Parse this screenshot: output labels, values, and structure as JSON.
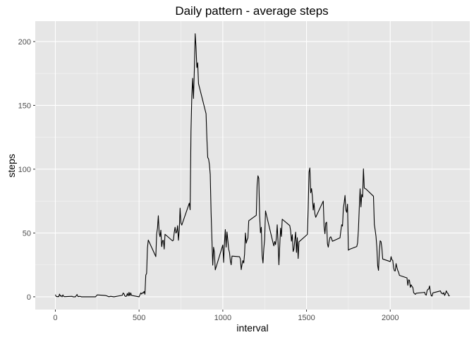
{
  "chart_data": {
    "type": "line",
    "title": "Daily pattern - average steps",
    "xlabel": "interval",
    "ylabel": "steps",
    "xlim": [
      -120,
      2475
    ],
    "ylim": [
      -10,
      216
    ],
    "x_ticks": [
      0,
      500,
      1000,
      1500,
      2000
    ],
    "y_ticks": [
      0,
      50,
      100,
      150,
      200
    ],
    "grid": true,
    "background": "#e6e6e6",
    "grid_major_color": "#ffffff",
    "line_color": "#000000",
    "series": [
      {
        "x": [
          0,
          5,
          10,
          15,
          20,
          25,
          30,
          35,
          40,
          45,
          50,
          55,
          100,
          105,
          110,
          115,
          120,
          125,
          130,
          135,
          140,
          145,
          150,
          155,
          200,
          210,
          220,
          230,
          240,
          250,
          300,
          310,
          320,
          330,
          340,
          350,
          400,
          405,
          410,
          415,
          420,
          425,
          430,
          435,
          440,
          445,
          450,
          455,
          500,
          505,
          510,
          515,
          520,
          525,
          530,
          535,
          540,
          545,
          550,
          555,
          600,
          605,
          610,
          615,
          620,
          625,
          630,
          635,
          640,
          645,
          650,
          655,
          700,
          705,
          710,
          715,
          720,
          725,
          730,
          735,
          740,
          745,
          750,
          755,
          800,
          805,
          810,
          815,
          820,
          825,
          830,
          835,
          840,
          845,
          850,
          855,
          900,
          905,
          910,
          915,
          920,
          925,
          930,
          935,
          940,
          945,
          950,
          955,
          1000,
          1005,
          1010,
          1015,
          1020,
          1025,
          1030,
          1035,
          1040,
          1045,
          1050,
          1055,
          1100,
          1105,
          1110,
          1115,
          1120,
          1125,
          1130,
          1135,
          1140,
          1145,
          1150,
          1155,
          1200,
          1205,
          1210,
          1215,
          1220,
          1225,
          1230,
          1235,
          1240,
          1245,
          1250,
          1255,
          1300,
          1305,
          1310,
          1315,
          1320,
          1325,
          1330,
          1335,
          1340,
          1345,
          1350,
          1355,
          1400,
          1405,
          1410,
          1415,
          1420,
          1425,
          1430,
          1435,
          1440,
          1445,
          1450,
          1455,
          1500,
          1505,
          1510,
          1515,
          1520,
          1525,
          1530,
          1535,
          1540,
          1545,
          1550,
          1555,
          1600,
          1605,
          1610,
          1615,
          1620,
          1625,
          1630,
          1635,
          1640,
          1645,
          1650,
          1655,
          1700,
          1705,
          1710,
          1715,
          1720,
          1725,
          1730,
          1735,
          1740,
          1745,
          1750,
          1755,
          1800,
          1805,
          1810,
          1815,
          1820,
          1825,
          1830,
          1835,
          1840,
          1845,
          1850,
          1855,
          1900,
          1905,
          1910,
          1915,
          1920,
          1925,
          1930,
          1935,
          1940,
          1945,
          1950,
          1955,
          2000,
          2005,
          2010,
          2015,
          2020,
          2025,
          2030,
          2035,
          2040,
          2045,
          2050,
          2055,
          2100,
          2105,
          2110,
          2115,
          2120,
          2125,
          2130,
          2135,
          2140,
          2145,
          2150,
          2155,
          2200,
          2205,
          2210,
          2215,
          2220,
          2225,
          2230,
          2235,
          2240,
          2245,
          2250,
          2255,
          2300,
          2305,
          2310,
          2315,
          2320,
          2325,
          2330,
          2335,
          2340,
          2345,
          2350,
          2355
        ],
        "y": [
          1.7,
          0.3,
          0.1,
          0.2,
          0.1,
          2.1,
          0.5,
          0.9,
          0.0,
          1.5,
          0.3,
          0.1,
          0.4,
          0.0,
          0.0,
          0.0,
          0.0,
          1.0,
          1.8,
          0.2,
          0.2,
          0.4,
          0.3,
          0.0,
          0.0,
          0.0,
          0.0,
          0.0,
          0.0,
          1.5,
          1.0,
          0.6,
          0.0,
          0.4,
          0.2,
          0.0,
          1.2,
          3.0,
          2.3,
          0.7,
          0.3,
          0.5,
          2.6,
          0.7,
          3.5,
          0.8,
          3.1,
          1.1,
          0.0,
          1.5,
          3.0,
          2.2,
          3.2,
          2.9,
          4.2,
          2.0,
          17.0,
          18.3,
          38.2,
          44.5,
          31.5,
          49.3,
          53.8,
          63.5,
          50.0,
          47.1,
          52.2,
          39.3,
          44.0,
          44.2,
          37.4,
          49.0,
          43.8,
          44.4,
          50.5,
          54.5,
          49.9,
          51.0,
          55.7,
          44.3,
          52.3,
          69.5,
          57.8,
          56.2,
          73.4,
          68.2,
          129.4,
          157.5,
          171.2,
          155.4,
          177.3,
          206.2,
          195.9,
          179.6,
          183.4,
          167.0,
          143.5,
          124.0,
          109.1,
          108.1,
          103.7,
          95.9,
          66.2,
          45.2,
          24.8,
          38.8,
          34.8,
          21.1,
          40.6,
          26.9,
          42.4,
          52.7,
          38.9,
          50.8,
          44.3,
          37.4,
          34.7,
          28.3,
          25.1,
          31.9,
          31.4,
          29.7,
          21.3,
          25.5,
          28.4,
          26.5,
          33.4,
          50.0,
          42.0,
          44.6,
          46.0,
          59.6,
          63.9,
          87.6,
          94.8,
          92.8,
          63.4,
          50.2,
          54.5,
          32.4,
          26.5,
          37.7,
          45.1,
          67.3,
          42.3,
          39.9,
          43.3,
          40.9,
          46.2,
          56.4,
          42.8,
          25.1,
          39.5,
          53.8,
          47.3,
          60.8,
          55.8,
          51.9,
          43.6,
          48.7,
          35.5,
          37.5,
          44.4,
          50.7,
          34.8,
          46.3,
          30.0,
          43.1,
          48.3,
          49.0,
          69.0,
          97.7,
          101.0,
          81.5,
          84.8,
          78.8,
          68.0,
          73.4,
          65.0,
          62.3,
          75.0,
          55.2,
          49.4,
          57.7,
          58.5,
          41.7,
          38.9,
          43.4,
          46.5,
          47.0,
          45.5,
          43.5,
          46.2,
          51.7,
          56.5,
          55.4,
          69.4,
          73.7,
          79.4,
          67.9,
          66.2,
          72.6,
          36.5,
          37.1,
          39.4,
          42.2,
          52.6,
          69.3,
          84.6,
          70.4,
          80.1,
          78.2,
          100.3,
          85.2,
          84.8,
          84.5,
          78.8,
          56.8,
          52.3,
          47.3,
          38.9,
          24.4,
          20.7,
          35.8,
          43.9,
          43.2,
          38.4,
          29.6,
          27.6,
          31.5,
          28.9,
          28.6,
          22.9,
          20.4,
          20.3,
          26.0,
          23.0,
          20.7,
          19.2,
          16.8,
          14.8,
          9.0,
          13.3,
          12.8,
          7.4,
          9.4,
          8.1,
          7.3,
          3.2,
          2.6,
          1.9,
          2.8,
          3.4,
          3.6,
          1.8,
          1.3,
          4.8,
          5.9,
          6.0,
          8.5,
          3.6,
          0.8,
          0.6,
          3.1,
          4.6,
          2.8,
          2.8,
          2.2,
          3.3,
          1.0,
          2.5,
          4.7,
          3.1,
          2.6,
          0.7,
          1.1
        ]
      }
    ]
  }
}
